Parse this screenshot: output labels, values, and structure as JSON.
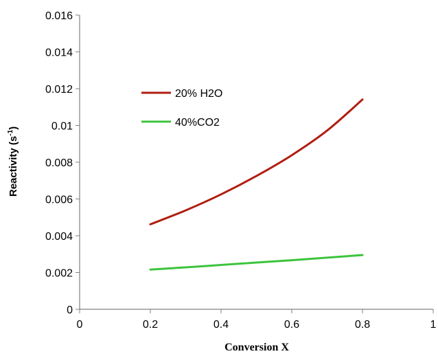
{
  "chart_data": {
    "type": "line",
    "title": "",
    "xlabel": "Conversion X",
    "ylabel": "Reactivity (s",
    "ylabel_sup": "-1",
    "ylabel_tail": ")",
    "xlim": [
      0,
      1
    ],
    "ylim": [
      0,
      0.016
    ],
    "x_ticks": [
      0,
      0.2,
      0.4,
      0.6,
      0.8,
      1
    ],
    "x_tick_labels": [
      "0",
      "0.2",
      "0.4",
      "0.6",
      "0.8",
      "1"
    ],
    "y_ticks": [
      0,
      0.002,
      0.004,
      0.006,
      0.008,
      0.01,
      0.012,
      0.014,
      0.016
    ],
    "y_tick_labels": [
      "0",
      "0.002",
      "0.004",
      "0.006",
      "0.008",
      "0.01",
      "0.012",
      "0.014",
      "0.016"
    ],
    "grid": false,
    "legend_position": "upper-left",
    "series": [
      {
        "name": "20% H2O",
        "color": "#b01e10",
        "x": [
          0.2,
          0.3,
          0.4,
          0.5,
          0.6,
          0.7,
          0.8
        ],
        "y": [
          0.00462,
          0.00538,
          0.00625,
          0.00725,
          0.00838,
          0.00972,
          0.01141
        ]
      },
      {
        "name": "40%CO2",
        "color": "#3cc43c",
        "x": [
          0.2,
          0.3,
          0.4,
          0.5,
          0.6,
          0.7,
          0.8
        ],
        "y": [
          0.00216,
          0.00228,
          0.00241,
          0.00254,
          0.00267,
          0.00281,
          0.00295
        ]
      }
    ]
  }
}
